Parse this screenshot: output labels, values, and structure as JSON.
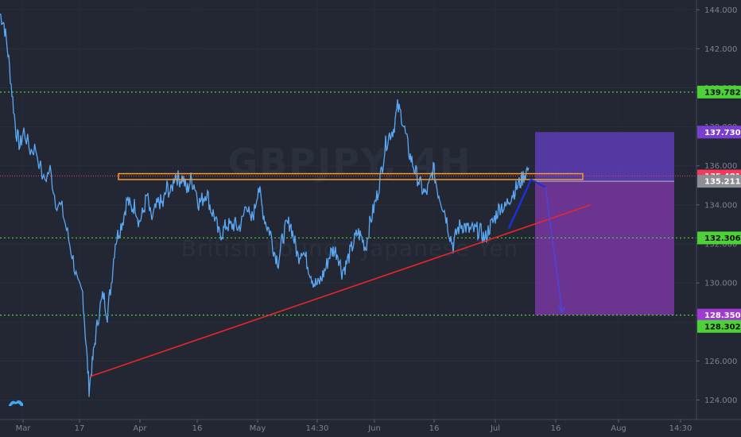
{
  "chart_data": {
    "type": "line",
    "symbol": "GBPJPY, 4H",
    "description": "British Pound / Japanese Yen",
    "ylim": [
      123,
      144.5
    ],
    "y_ticks": [
      "124.000",
      "126.000",
      "128.000",
      "130.000",
      "132.000",
      "134.000",
      "136.000",
      "138.000",
      "140.000",
      "142.000",
      "144.000"
    ],
    "x_ticks": [
      "Mar",
      "17",
      "Apr",
      "16",
      "May",
      "14:30",
      "Jun",
      "16",
      "Jul",
      "16",
      "Aug",
      "14:30"
    ],
    "price_series": {
      "name": "GBPJPY",
      "color": "#5aa8f5",
      "keypoints": [
        [
          0,
          143.8
        ],
        [
          5,
          143.3
        ],
        [
          10,
          141.8
        ],
        [
          15,
          139.8
        ],
        [
          20,
          137.8
        ],
        [
          25,
          137.0
        ],
        [
          30,
          137.8
        ],
        [
          38,
          136.8
        ],
        [
          45,
          136.9
        ],
        [
          55,
          135.2
        ],
        [
          63,
          135.8
        ],
        [
          70,
          134.2
        ],
        [
          78,
          133.8
        ],
        [
          85,
          132.5
        ],
        [
          92,
          131.2
        ],
        [
          98,
          129.8
        ],
        [
          104,
          129.5
        ],
        [
          108,
          127.0
        ],
        [
          112,
          124.6
        ],
        [
          116,
          125.8
        ],
        [
          120,
          127.2
        ],
        [
          125,
          128.6
        ],
        [
          130,
          129.4
        ],
        [
          135,
          128.4
        ],
        [
          140,
          130.0
        ],
        [
          145,
          132.1
        ],
        [
          150,
          132.7
        ],
        [
          155,
          133.3
        ],
        [
          160,
          134.3
        ],
        [
          165,
          133.8
        ],
        [
          170,
          134.0
        ],
        [
          175,
          133.1
        ],
        [
          180,
          133.6
        ],
        [
          185,
          134.5
        ],
        [
          190,
          133.2
        ],
        [
          195,
          133.7
        ],
        [
          200,
          134.2
        ],
        [
          205,
          134.0
        ],
        [
          210,
          134.9
        ],
        [
          215,
          134.6
        ],
        [
          220,
          135.6
        ],
        [
          225,
          135.3
        ],
        [
          230,
          135.4
        ],
        [
          235,
          134.7
        ],
        [
          240,
          135.3
        ],
        [
          245,
          135.0
        ],
        [
          250,
          134.1
        ],
        [
          255,
          134.3
        ],
        [
          260,
          134.7
        ],
        [
          265,
          133.8
        ],
        [
          270,
          133.4
        ],
        [
          275,
          132.5
        ],
        [
          280,
          132.6
        ],
        [
          285,
          133.0
        ],
        [
          290,
          132.9
        ],
        [
          295,
          133.0
        ],
        [
          300,
          132.8
        ],
        [
          305,
          133.2
        ],
        [
          310,
          134.2
        ],
        [
          315,
          133.1
        ],
        [
          320,
          133.7
        ],
        [
          325,
          135.0
        ],
        [
          330,
          133.8
        ],
        [
          335,
          133.0
        ],
        [
          340,
          132.6
        ],
        [
          345,
          131.6
        ],
        [
          350,
          131.1
        ],
        [
          355,
          132.2
        ],
        [
          360,
          132.9
        ],
        [
          365,
          133.1
        ],
        [
          370,
          132.2
        ],
        [
          375,
          131.3
        ],
        [
          380,
          131.8
        ],
        [
          385,
          131.2
        ],
        [
          390,
          130.6
        ],
        [
          395,
          130.0
        ],
        [
          400,
          129.9
        ],
        [
          405,
          130.3
        ],
        [
          410,
          130.8
        ],
        [
          415,
          131.5
        ],
        [
          420,
          131.7
        ],
        [
          425,
          131.5
        ],
        [
          430,
          130.6
        ],
        [
          435,
          130.9
        ],
        [
          440,
          131.5
        ],
        [
          445,
          132.1
        ],
        [
          450,
          132.6
        ],
        [
          455,
          132.3
        ],
        [
          460,
          131.8
        ],
        [
          465,
          133.0
        ],
        [
          470,
          133.8
        ],
        [
          475,
          134.6
        ],
        [
          480,
          135.8
        ],
        [
          485,
          137.1
        ],
        [
          490,
          137.6
        ],
        [
          495,
          137.9
        ],
        [
          500,
          139.0
        ],
        [
          505,
          138.6
        ],
        [
          510,
          137.6
        ],
        [
          515,
          136.6
        ],
        [
          520,
          136.0
        ],
        [
          525,
          135.4
        ],
        [
          530,
          134.9
        ],
        [
          535,
          134.5
        ],
        [
          540,
          135.0
        ],
        [
          545,
          135.9
        ],
        [
          550,
          134.8
        ],
        [
          555,
          134.2
        ],
        [
          560,
          133.6
        ],
        [
          565,
          132.6
        ],
        [
          570,
          131.9
        ],
        [
          575,
          132.7
        ],
        [
          580,
          133.0
        ],
        [
          585,
          132.9
        ],
        [
          590,
          132.7
        ],
        [
          595,
          132.7
        ],
        [
          600,
          132.7
        ],
        [
          605,
          132.6
        ],
        [
          610,
          132.2
        ],
        [
          615,
          132.8
        ],
        [
          620,
          133.1
        ],
        [
          625,
          133.6
        ],
        [
          630,
          134.0
        ],
        [
          635,
          133.8
        ],
        [
          640,
          134.3
        ],
        [
          645,
          134.6
        ],
        [
          650,
          134.9
        ],
        [
          655,
          135.2
        ],
        [
          660,
          135.6
        ],
        [
          665,
          135.9
        ]
      ]
    },
    "levels": [
      {
        "name": "resistance",
        "price": 139.782,
        "color": "#4cd137",
        "label": "139.782"
      },
      {
        "name": "support-mid",
        "price": 132.306,
        "color": "#4cd137",
        "label": "132.306"
      },
      {
        "name": "support-low",
        "price": 128.35,
        "color": "#4cd137",
        "label": "128.350"
      }
    ],
    "price_badges": [
      {
        "name": "target-badge",
        "label": "137.730",
        "bg": "#7b3fd0",
        "fg": "#ffffff",
        "price": 137.73
      },
      {
        "name": "current-price-badge",
        "label": "135.481",
        "bg": "#f23a5a",
        "fg": "#ffffff",
        "price": 135.481
      },
      {
        "name": "entry-badge",
        "label": "135.211",
        "bg": "#8e8e95",
        "fg": "#ffffff",
        "price": 135.211
      },
      {
        "name": "level-badge-139",
        "label": "139.782",
        "bg": "#4cd137",
        "fg": "#111111",
        "price": 139.782
      },
      {
        "name": "level-badge-132",
        "label": "132.306",
        "bg": "#4cd137",
        "fg": "#111111",
        "price": 132.306
      },
      {
        "name": "level-badge-128-350",
        "label": "128.350",
        "bg": "#a03ad3",
        "fg": "#ffffff",
        "price": 128.35
      },
      {
        "name": "level-badge-128-302",
        "label": "128.302",
        "bg": "#4cd137",
        "fg": "#111111",
        "price": 128.302
      }
    ],
    "trendline": {
      "color": "#e8252b",
      "from_price": 125.2,
      "to_price": 134.0
    },
    "resistance_zone": {
      "color": "#f39c2a",
      "top": 135.6,
      "bottom": 135.3
    },
    "position": {
      "entry": 135.211,
      "stop": 137.73,
      "target": 128.35,
      "stop_color": "#6640c8",
      "target_color": "#8a3ab8"
    },
    "current_price": 135.481,
    "colors": {
      "background": "#232733",
      "axis_text": "#7d8290",
      "arrow": "#1c2fd6"
    }
  }
}
